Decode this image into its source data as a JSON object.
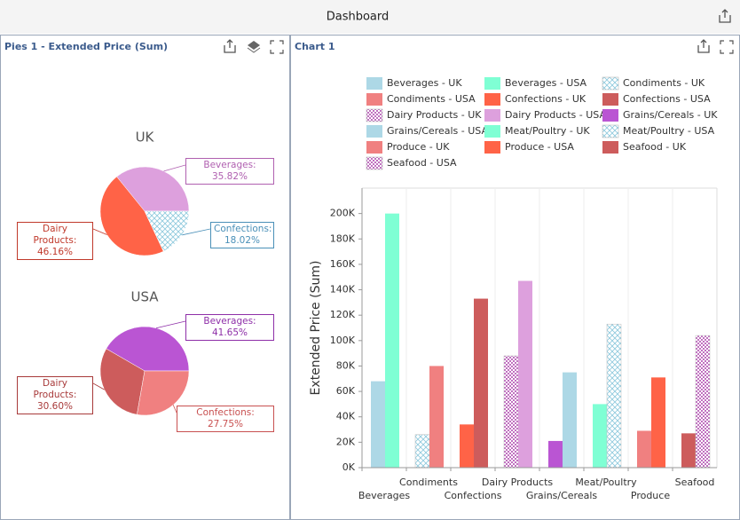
{
  "dashboard_title": "Dashboard",
  "panels": [
    {
      "title": "Pies 1 - Extended Price (Sum)"
    },
    {
      "title": "Chart 1"
    }
  ],
  "chart_data": [
    {
      "type": "pie",
      "title": "UK",
      "values": [
        35.82,
        46.16,
        18.02
      ],
      "value_labels": [
        "Beverages: 35.82%",
        "Dairy Products: 46.16%",
        "Confections: 18.02%"
      ],
      "colors": [
        "#dda0dd",
        "#ff6347",
        "#add8e6"
      ],
      "patterns": [
        null,
        null,
        "hatch"
      ],
      "label_colors": [
        "#b060b0",
        "#c0392b",
        "#4a90b8"
      ]
    },
    {
      "type": "pie",
      "title": "USA",
      "values": [
        41.65,
        30.6,
        27.75
      ],
      "value_labels": [
        "Beverages: 41.65%",
        "Dairy Products: 30.60%",
        "Confections: 27.75%"
      ],
      "colors": [
        "#ba55d3",
        "#cd5c5c",
        "#f08080"
      ],
      "patterns": [
        null,
        null,
        null
      ],
      "label_colors": [
        "#8e2fa8",
        "#a83a3a",
        "#c85050"
      ]
    },
    {
      "type": "bar",
      "y_label": "Extended Price (Sum)",
      "categories": [
        "Beverages",
        "Condiments",
        "Confections",
        "Dairy Products",
        "Grains/Cereals",
        "Meat/Poultry",
        "Produce",
        "Seafood"
      ],
      "ylim": [
        0,
        220000
      ],
      "yticks": [
        {
          "value": 0,
          "label": "0K"
        },
        {
          "value": 20000,
          "label": "20K"
        },
        {
          "value": 40000,
          "label": "40K"
        },
        {
          "value": 60000,
          "label": "60K"
        },
        {
          "value": 80000,
          "label": "80K"
        },
        {
          "value": 100000,
          "label": "100K"
        },
        {
          "value": 120000,
          "label": "120K"
        },
        {
          "value": 140000,
          "label": "140K"
        },
        {
          "value": 160000,
          "label": "160K"
        },
        {
          "value": 180000,
          "label": "180K"
        },
        {
          "value": 200000,
          "label": "200K"
        }
      ],
      "series": [
        {
          "name": "Beverages - UK",
          "color": "#add8e6",
          "pattern": null,
          "values": [
            68000,
            null,
            null,
            null,
            null,
            null,
            null,
            null
          ]
        },
        {
          "name": "Beverages - USA",
          "color": "#7fffd4",
          "pattern": null,
          "values": [
            200000,
            null,
            null,
            null,
            null,
            null,
            null,
            null
          ]
        },
        {
          "name": "Condiments - UK",
          "color": "#add8e6",
          "pattern": "hatch",
          "values": [
            null,
            26000,
            null,
            null,
            null,
            null,
            null,
            null
          ]
        },
        {
          "name": "Condiments - USA",
          "color": "#f08080",
          "pattern": null,
          "values": [
            null,
            80000,
            null,
            null,
            null,
            null,
            null,
            null
          ]
        },
        {
          "name": "Confections - UK",
          "color": "#ff6347",
          "pattern": null,
          "values": [
            null,
            null,
            34000,
            null,
            null,
            null,
            null,
            null
          ]
        },
        {
          "name": "Confections - USA",
          "color": "#cd5c5c",
          "pattern": null,
          "values": [
            null,
            null,
            133000,
            null,
            null,
            null,
            null,
            null
          ]
        },
        {
          "name": "Dairy Products - UK",
          "color": "#dda0dd",
          "pattern": "dots",
          "values": [
            null,
            null,
            null,
            88000,
            null,
            null,
            null,
            null
          ]
        },
        {
          "name": "Dairy Products - USA",
          "color": "#dda0dd",
          "pattern": null,
          "values": [
            null,
            null,
            null,
            147000,
            null,
            null,
            null,
            null
          ]
        },
        {
          "name": "Grains/Cereals - UK",
          "color": "#ba55d3",
          "pattern": null,
          "values": [
            null,
            null,
            null,
            null,
            21000,
            null,
            null,
            null
          ]
        },
        {
          "name": "Grains/Cereals - USA",
          "color": "#add8e6",
          "pattern": null,
          "values": [
            null,
            null,
            null,
            null,
            75000,
            null,
            null,
            null
          ]
        },
        {
          "name": "Meat/Poultry - UK",
          "color": "#7fffd4",
          "pattern": null,
          "values": [
            null,
            null,
            null,
            null,
            null,
            50000,
            null,
            null
          ]
        },
        {
          "name": "Meat/Poultry - USA",
          "color": "#add8e6",
          "pattern": "hatch",
          "values": [
            null,
            null,
            null,
            null,
            null,
            113000,
            null,
            null
          ]
        },
        {
          "name": "Produce - UK",
          "color": "#f08080",
          "pattern": null,
          "values": [
            null,
            null,
            null,
            null,
            null,
            null,
            29000,
            null
          ]
        },
        {
          "name": "Produce - USA",
          "color": "#ff6347",
          "pattern": null,
          "values": [
            null,
            null,
            null,
            null,
            null,
            null,
            71000,
            null
          ]
        },
        {
          "name": "Seafood - UK",
          "color": "#cd5c5c",
          "pattern": null,
          "values": [
            null,
            null,
            null,
            null,
            null,
            null,
            null,
            27000
          ]
        },
        {
          "name": "Seafood - USA",
          "color": "#dda0dd",
          "pattern": "dots",
          "values": [
            null,
            null,
            null,
            null,
            null,
            null,
            null,
            104000
          ]
        }
      ]
    }
  ]
}
